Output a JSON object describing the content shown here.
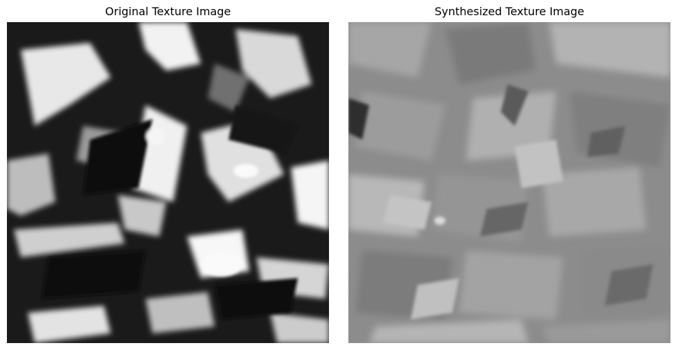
{
  "figure": {
    "panels": [
      {
        "title": "Original Texture Image",
        "image_description_icon": "crumpled-foil-texture-high-contrast",
        "colormap": "grayscale"
      },
      {
        "title": "Synthesized Texture Image",
        "image_description_icon": "crumpled-foil-texture-low-contrast",
        "colormap": "grayscale"
      }
    ]
  }
}
